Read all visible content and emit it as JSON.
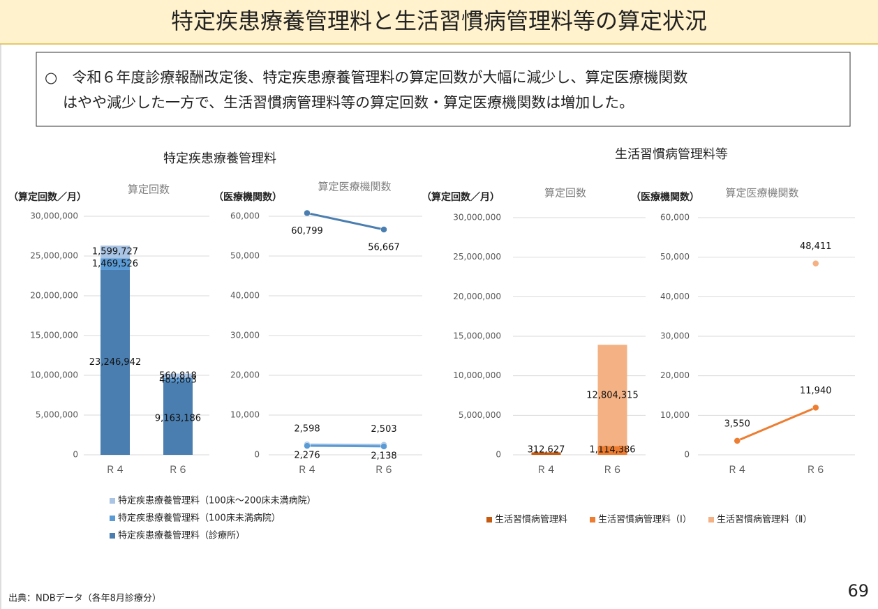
{
  "title": "特定疾患療養管理料と生活習慣病管理料等の算定状況",
  "summary": [
    "○　令和６年度診療報酬改定後、特定疾患療養管理料の算定回数が大幅に減少し、算定医療機関数",
    "はやや減少した一方で、生活習慣病管理料等の算定回数・算定医療機関数は増加した。"
  ],
  "panels": [
    "特定疾患療養管理料",
    "生活習慣病管理料等"
  ],
  "source": "出典：NDBデータ（各年8月診療分）",
  "page_number": "69",
  "chart_data": [
    {
      "type": "bar",
      "stacked": true,
      "title": "算定回数",
      "y_label": "（算定回数／月）",
      "categories": [
        "Ｒ４",
        "Ｒ６"
      ],
      "series": [
        {
          "name": "特定疾患療養管理料（100床～200床未満病院）",
          "color": "#a9c4e4",
          "values": [
            1599727,
            560818
          ],
          "value_labels": [
            "1,599,727",
            "560,818"
          ]
        },
        {
          "name": "特定疾患療養管理料（100床未満病院）",
          "color": "#5b9bd5",
          "values": [
            1469526,
            485803
          ],
          "value_labels": [
            "1,469,526",
            "485,803"
          ]
        },
        {
          "name": "特定疾患療養管理料（診療所）",
          "color": "#4a7eb0",
          "values": [
            23246942,
            9163186
          ],
          "value_labels": [
            "23,246,942",
            "9,163,186"
          ]
        }
      ],
      "ylim": [
        0,
        30000000
      ],
      "yticks": [
        0,
        {
          "value": 5000000,
          "label": "5,000,000"
        },
        {
          "value": 10000000,
          "label": "10,000,000"
        },
        {
          "value": 15000000,
          "label": "15,000,000"
        },
        {
          "value": 20000000,
          "label": "20,000,000"
        },
        {
          "value": 25000000,
          "label": "25,000,000"
        },
        {
          "value": 30000000,
          "label": "30,000,000"
        }
      ],
      "grid": true
    },
    {
      "type": "line",
      "title": "算定医療機関数",
      "y_label": "（医療機関数）",
      "categories": [
        "Ｒ４",
        "Ｒ６"
      ],
      "series": [
        {
          "color": "#4a7eb0",
          "values": [
            60799,
            56667
          ],
          "value_labels": [
            "60,799",
            "56,667"
          ]
        },
        {
          "color": "#a9c4e4",
          "values": [
            2598,
            2503
          ],
          "value_labels": [
            "2,598",
            "2,503"
          ]
        },
        {
          "color": "#5b9bd5",
          "values": [
            2276,
            2138
          ],
          "value_labels": [
            "2,276",
            "2,138"
          ]
        }
      ],
      "ylim": [
        0,
        60000
      ],
      "yticks": [
        0,
        {
          "value": 10000,
          "label": "10,000"
        },
        {
          "value": 20000,
          "label": "20,000"
        },
        {
          "value": 30000,
          "label": "30,000"
        },
        {
          "value": 40000,
          "label": "40,000"
        },
        {
          "value": 50000,
          "label": "50,000"
        },
        {
          "value": 60000,
          "label": "60,000"
        }
      ],
      "grid": true
    },
    {
      "type": "bar",
      "stacked": true,
      "title": "算定回数",
      "y_label": "（算定回数／月）",
      "categories": [
        "Ｒ４",
        "Ｒ６"
      ],
      "series": [
        {
          "name": "生活習慣病管理料",
          "color": "#c55a11",
          "values": [
            312627,
            null
          ],
          "value_labels": [
            "312,627",
            null
          ]
        },
        {
          "name": "生活習慣病管理料（Ⅰ）",
          "color": "#ed7d31",
          "values": [
            null,
            1114386
          ],
          "value_labels": [
            null,
            "1,114,386"
          ]
        },
        {
          "name": "生活習慣病管理料（Ⅱ）",
          "color": "#f4b183",
          "values": [
            null,
            12804315
          ],
          "value_labels": [
            null,
            "12,804,315"
          ]
        }
      ],
      "ylim": [
        0,
        30000000
      ],
      "yticks": [
        0,
        {
          "value": 5000000,
          "label": "5,000,000"
        },
        {
          "value": 10000000,
          "label": "10,000,000"
        },
        {
          "value": 15000000,
          "label": "15,000,000"
        },
        {
          "value": 20000000,
          "label": "20,000,000"
        },
        {
          "value": 25000000,
          "label": "25,000,000"
        },
        {
          "value": 30000000,
          "label": "30,000,000"
        }
      ],
      "grid": true
    },
    {
      "type": "line",
      "title": "算定医療機関数",
      "y_label": "（医療機関数）",
      "categories": [
        "Ｒ４",
        "Ｒ６"
      ],
      "series": [
        {
          "color": "#ed7d31",
          "values": [
            3550,
            11940
          ],
          "value_labels": [
            "3,550",
            "11,940"
          ]
        },
        {
          "color": "#f4b183",
          "values": [
            null,
            48411
          ],
          "value_labels": [
            null,
            "48,411"
          ]
        }
      ],
      "ylim": [
        0,
        60000
      ],
      "yticks": [
        0,
        {
          "value": 10000,
          "label": "10,000"
        },
        {
          "value": 20000,
          "label": "20,000"
        },
        {
          "value": 30000,
          "label": "30,000"
        },
        {
          "value": 40000,
          "label": "40,000"
        },
        {
          "value": 50000,
          "label": "50,000"
        },
        {
          "value": 60000,
          "label": "60,000"
        }
      ],
      "grid": true
    }
  ]
}
